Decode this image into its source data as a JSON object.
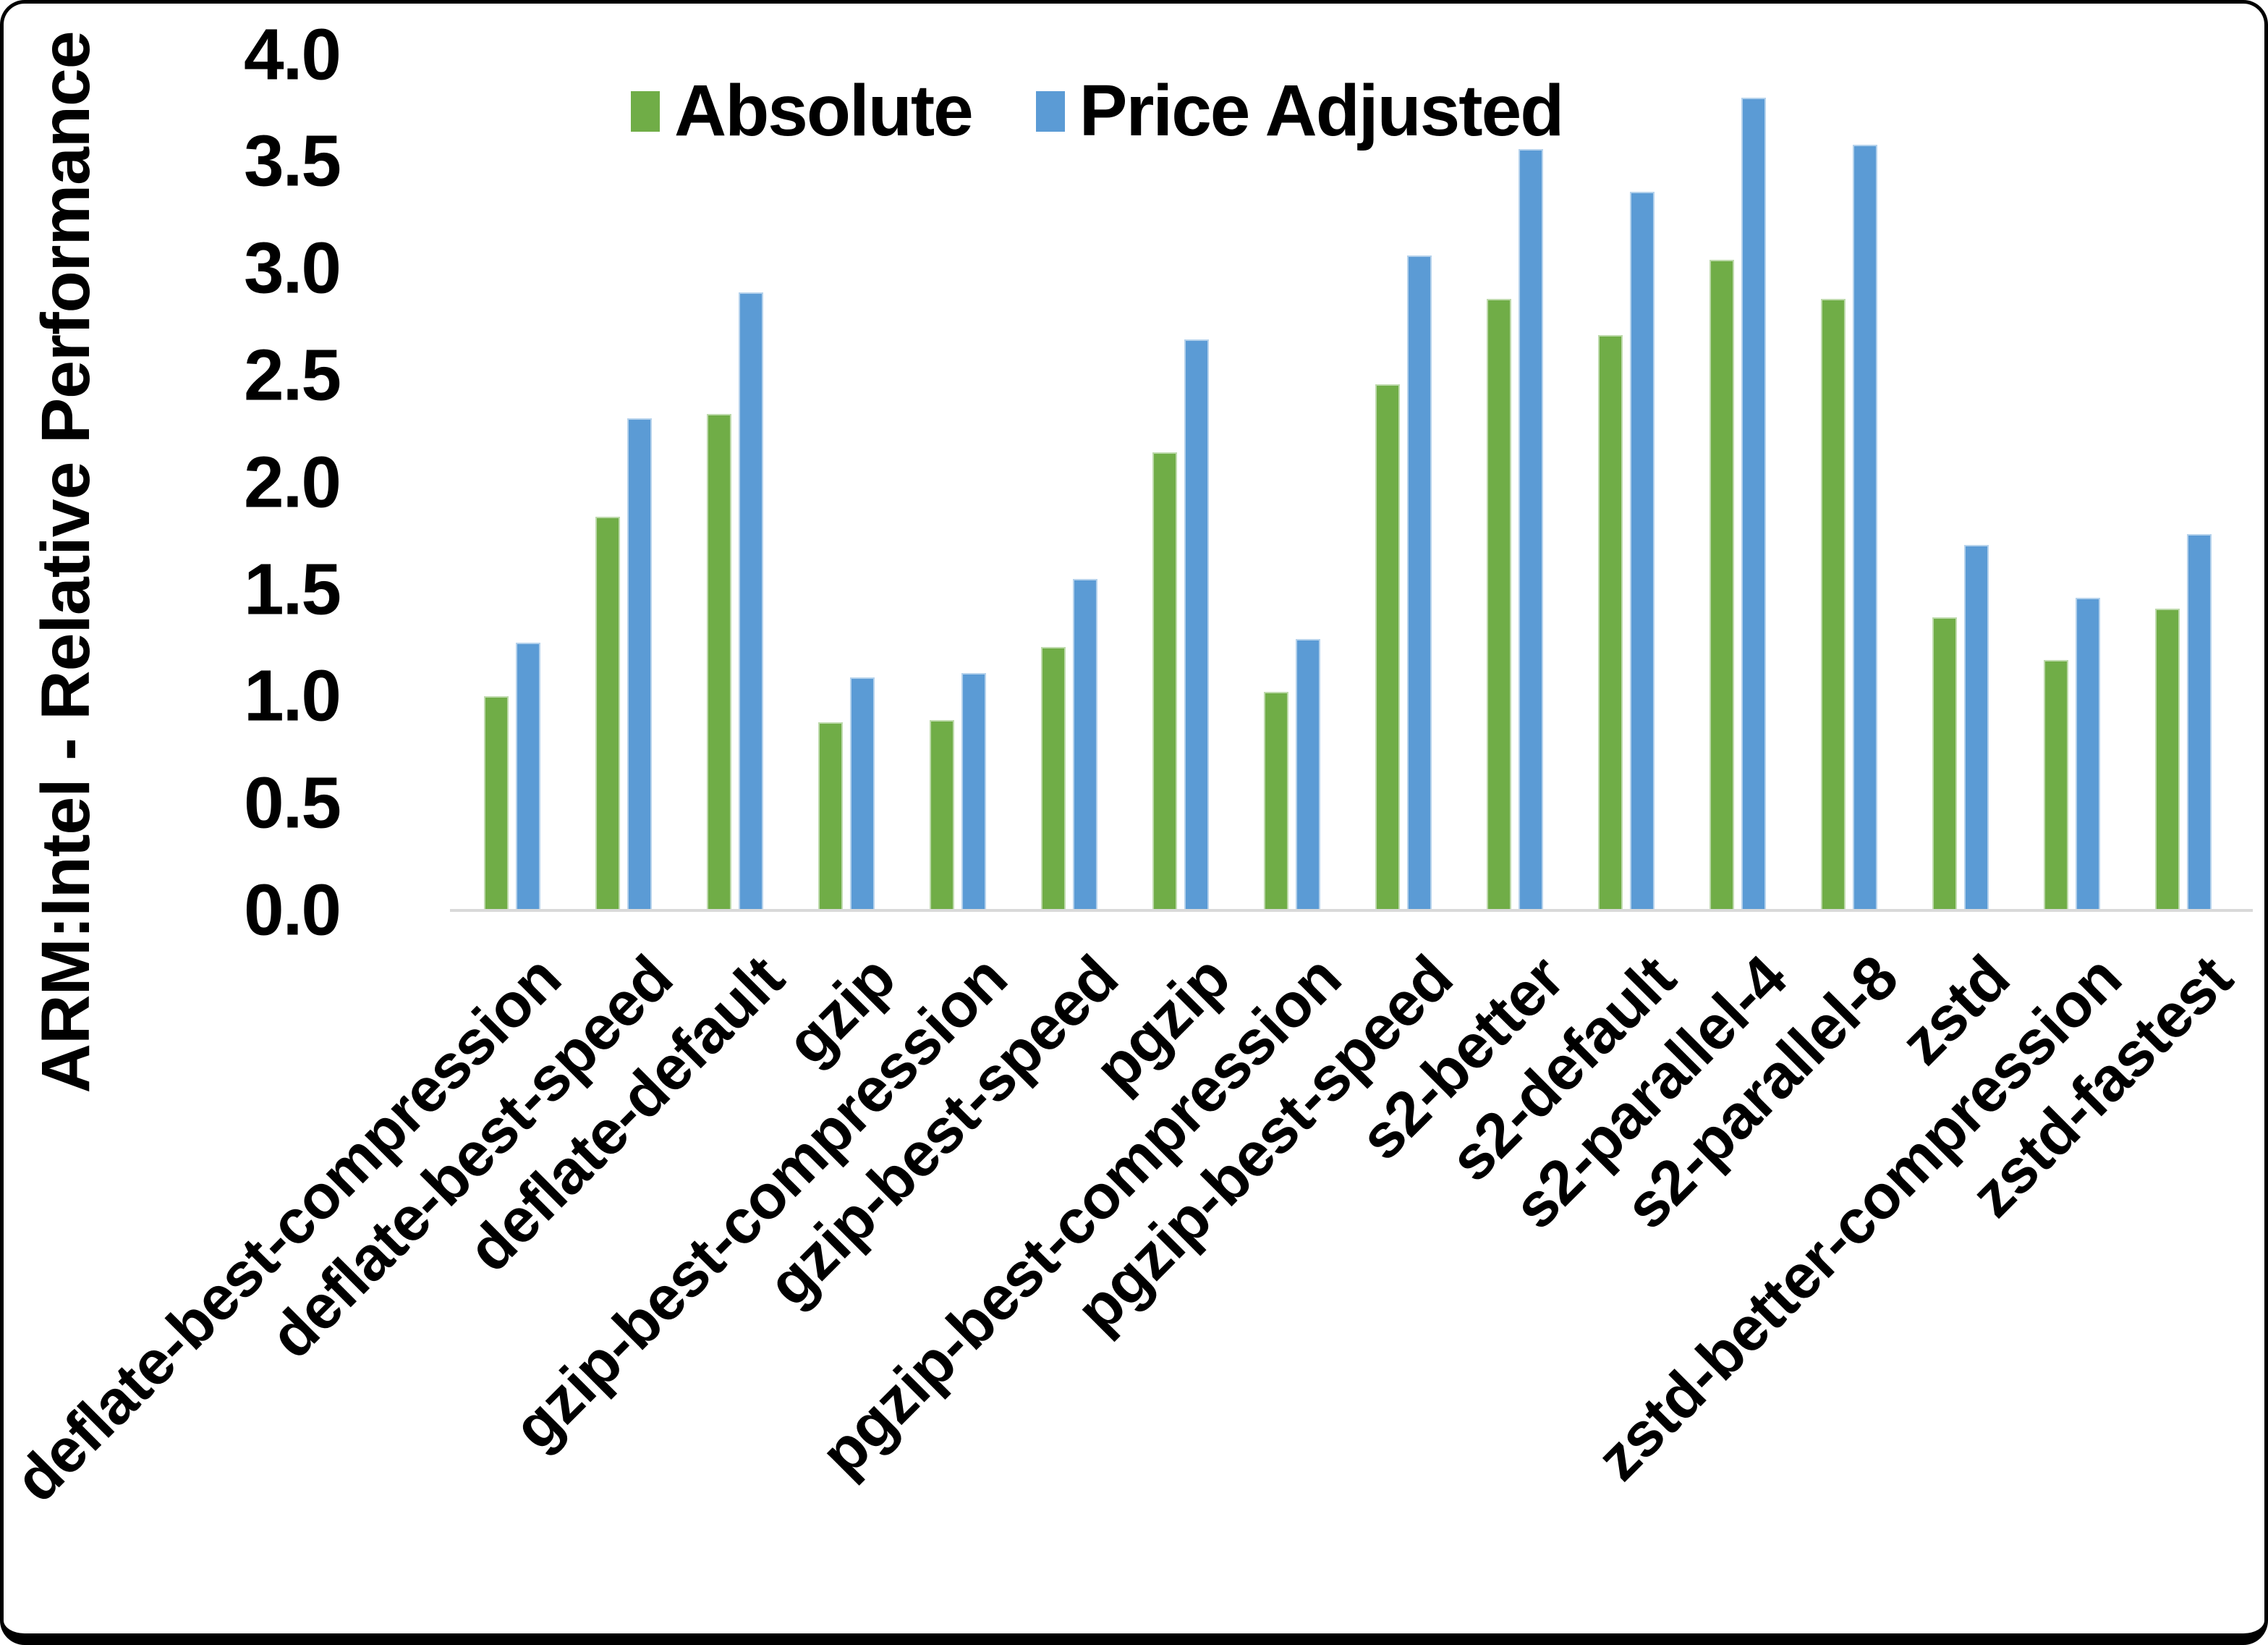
{
  "frame": {
    "border_color": "#000000",
    "background": "#FFFFFF"
  },
  "chart_data": {
    "type": "bar",
    "title": "",
    "xlabel": "",
    "ylabel": "ARM:Intel - Relative Performance",
    "ylim": [
      0.0,
      4.0
    ],
    "ytick_step": 0.5,
    "ytick_labels": [
      "0.0",
      "0.5",
      "1.0",
      "1.5",
      "2.0",
      "2.5",
      "3.0",
      "3.5",
      "4.0"
    ],
    "grid": "off",
    "legend_position": "top-center",
    "axis_line_color": "#D9D9D9",
    "text_color": "#000000",
    "categories": [
      "deflate-best-compression",
      "deflate-best-speed",
      "deflate-default",
      "gzip",
      "gzip-best-compression",
      "gzip-best-speed",
      "pgzip",
      "pgzip-best-compression",
      "pgzip-best-speed",
      "s2-better",
      "s2-default",
      "s2-parallel-4",
      "s2-parallel-8",
      "zstd",
      "zstd-better-compression",
      "zstd-fastest"
    ],
    "series": [
      {
        "name": "Absolute",
        "color": "#70AD47",
        "values": [
          1.0,
          1.84,
          2.32,
          0.88,
          0.89,
          1.23,
          2.14,
          1.02,
          2.46,
          2.86,
          2.69,
          3.04,
          2.86,
          1.37,
          1.17,
          1.41
        ]
      },
      {
        "name": "Price Adjusted",
        "color": "#5B9BD5",
        "values": [
          1.25,
          2.3,
          2.89,
          1.09,
          1.11,
          1.55,
          2.67,
          1.27,
          3.06,
          3.56,
          3.36,
          3.8,
          3.58,
          1.71,
          1.46,
          1.76
        ]
      }
    ]
  }
}
